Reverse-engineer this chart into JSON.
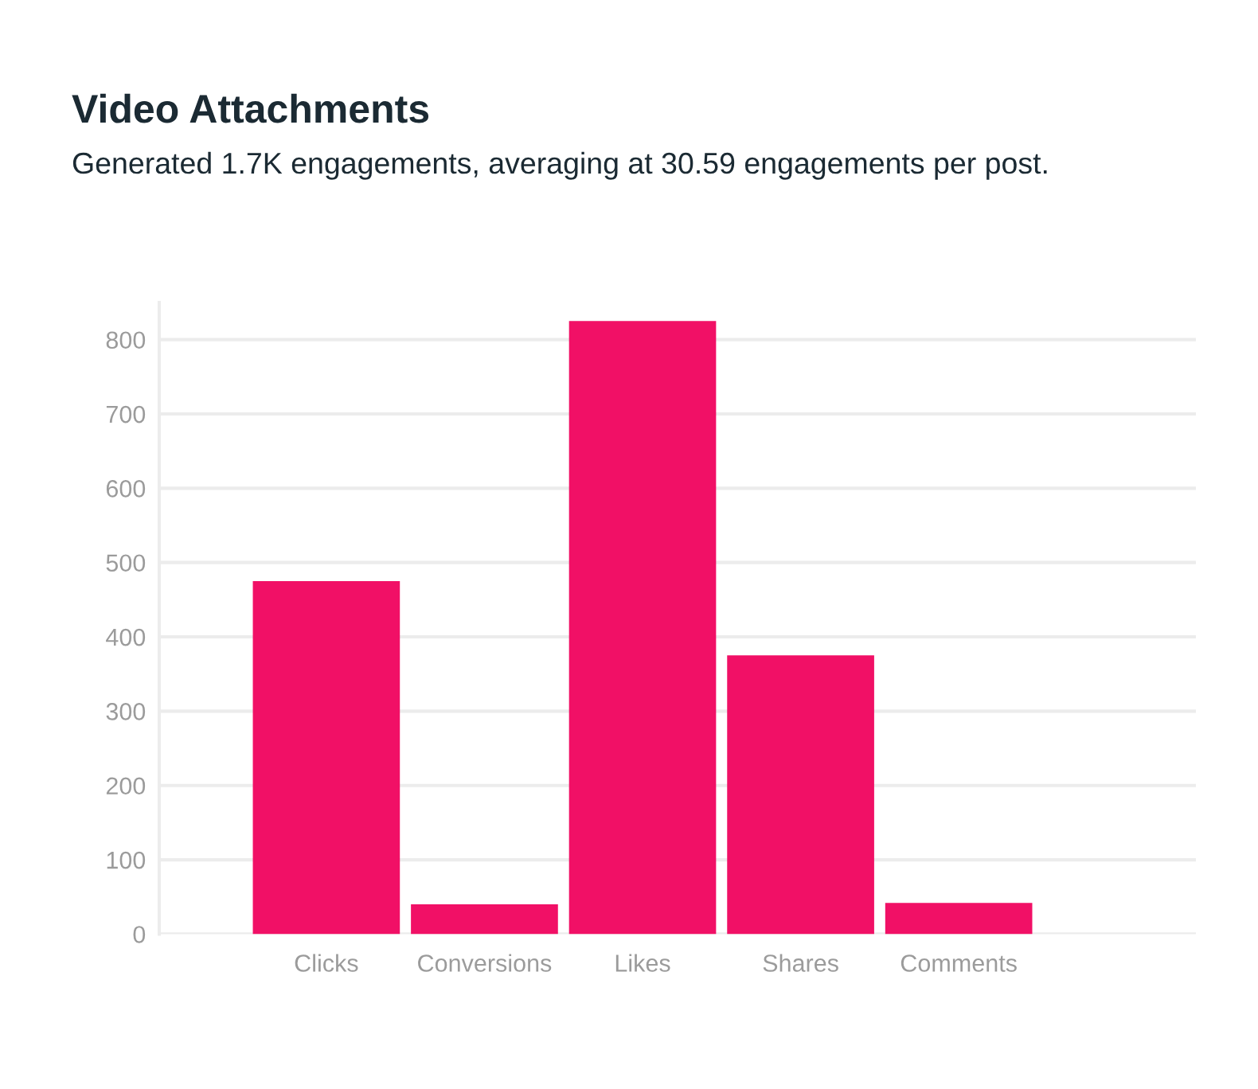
{
  "chart_data": {
    "type": "bar",
    "title": "Video Attachments",
    "subtitle": "Generated 1.7K engagements, averaging at 30.59 engagements per post.",
    "categories": [
      "Clicks",
      "Conversions",
      "Likes",
      "Shares",
      "Comments"
    ],
    "values": [
      475,
      40,
      825,
      375,
      42
    ],
    "color": "#f11066",
    "ylim": [
      0,
      850
    ],
    "yticks": [
      0,
      100,
      200,
      300,
      400,
      500,
      600,
      700,
      800
    ],
    "grid": "y"
  }
}
